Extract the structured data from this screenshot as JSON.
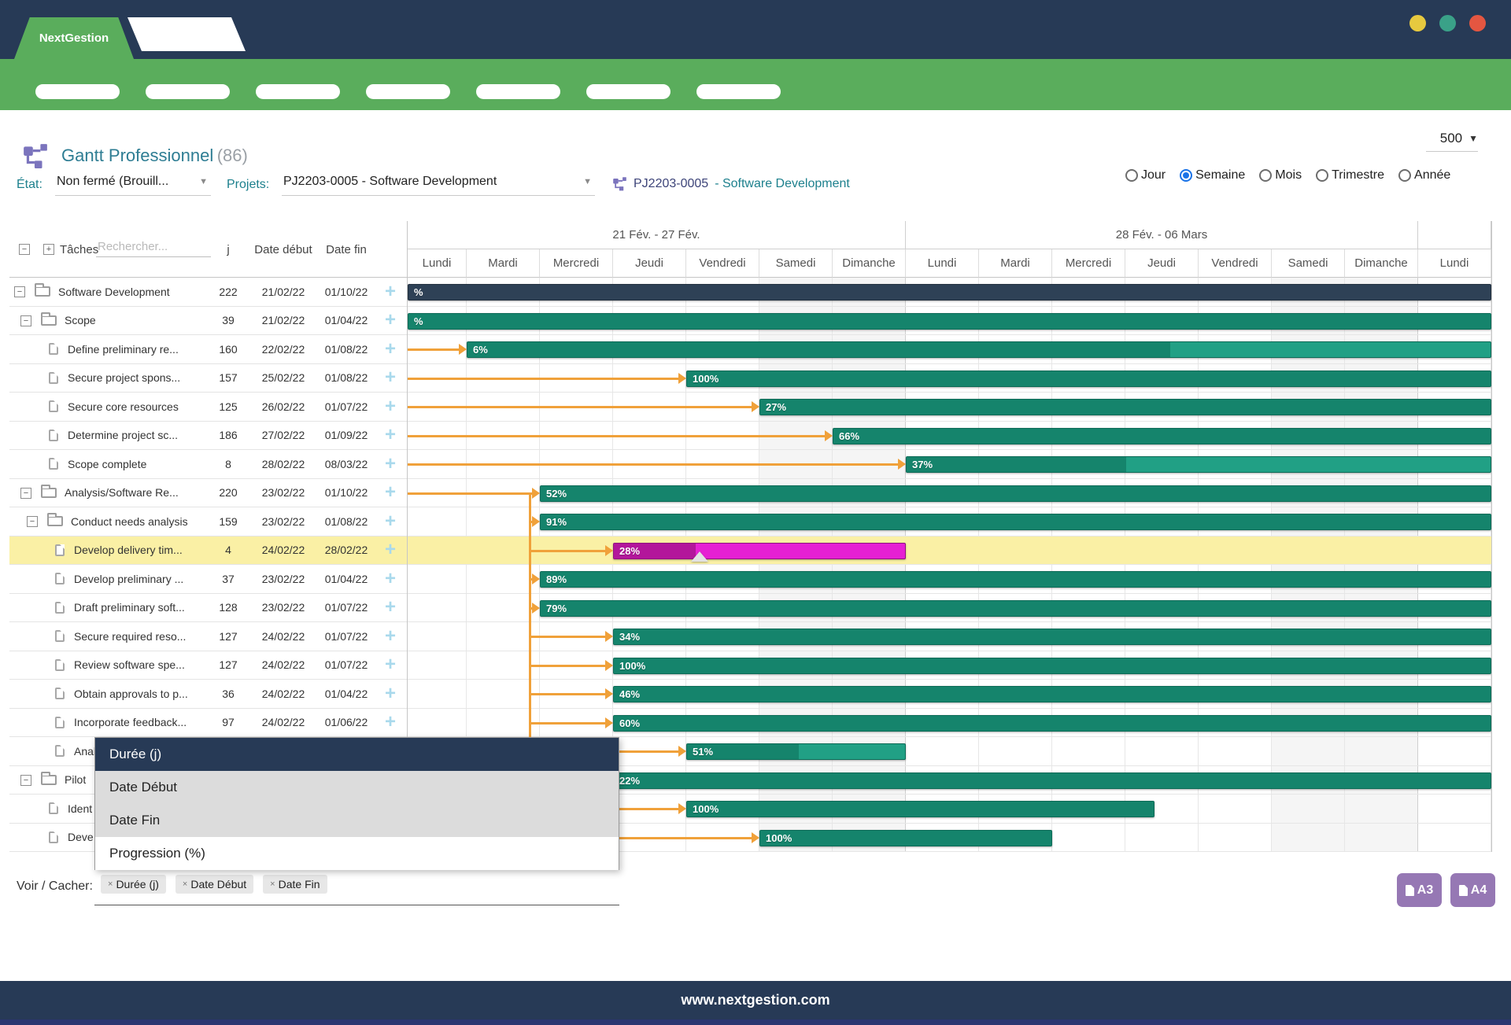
{
  "theme": {
    "navy": "#273a56",
    "green": "#5aad5c",
    "orange": "#f0a13a",
    "yellow_row": "#faf0a5",
    "teal_fill": "#15846c",
    "teal_rest": "#21a085",
    "teal_border": "#0d6b57",
    "navy_bar": "#2e4156",
    "navy_bar_border": "#22303f",
    "magenta_fill": "#b3169b",
    "magenta_rest": "#e620d3",
    "magenta_border": "#8f1280",
    "purple_button": "#9678b4",
    "radio_blue": "#1a73e8",
    "light_blue_plus": "#a9d9ec",
    "footer_strip": "#2b3570",
    "windot_colors": [
      "#e7c93f",
      "#3aa188",
      "#e45641"
    ]
  },
  "window": {
    "brand": "NextGestion"
  },
  "nav": {
    "pill_count": 7
  },
  "header": {
    "title": "Gantt Professionnel",
    "count": "(86)",
    "page_size": "500"
  },
  "filters": {
    "etat_label": "État:",
    "etat_value": "Non fermé (Brouill...",
    "projets_label": "Projets:",
    "projets_value": "PJ2203-0005 - Software Development",
    "project_code": "PJ2203-0005",
    "project_name": "- Software Development",
    "view_modes": [
      {
        "label": "Jour",
        "selected": false
      },
      {
        "label": "Semaine",
        "selected": true
      },
      {
        "label": "Mois",
        "selected": false
      },
      {
        "label": "Trimestre",
        "selected": false
      },
      {
        "label": "Année",
        "selected": false
      }
    ]
  },
  "table_header": {
    "tasks_label": "Tâches",
    "search_placeholder": "Rechercher...",
    "col_days": "j",
    "col_start": "Date début",
    "col_end": "Date fin"
  },
  "gantt": {
    "weeks": [
      {
        "label": "21 Fév. - 27 Fév.",
        "n_days": 7
      },
      {
        "label": "28 Fév. - 06 Mars",
        "n_days": 7
      },
      {
        "label": "",
        "n_days": 1
      }
    ],
    "day_names": [
      "Lundi",
      "Mardi",
      "Mercredi",
      "Jeudi",
      "Vendredi",
      "Samedi",
      "Dimanche",
      "Lundi",
      "Mardi",
      "Mercredi",
      "Jeudi",
      "Vendredi",
      "Samedi",
      "Dimanche",
      "Lundi"
    ],
    "weekend_day_indexes": [
      5,
      6,
      12,
      13
    ]
  },
  "rows": [
    {
      "name": "Software Development",
      "level": 0,
      "kind": "folder",
      "j": "222",
      "start": "21/02/22",
      "end": "01/10/22",
      "highlight": false,
      "bar": {
        "color": "navy",
        "label": "%",
        "sd": 0,
        "ed": null,
        "fpx": null,
        "handle": false
      },
      "arrow": null
    },
    {
      "name": "Scope",
      "level": 1,
      "kind": "folder",
      "j": "39",
      "start": "21/02/22",
      "end": "01/04/22",
      "highlight": false,
      "bar": {
        "color": "teal",
        "label": "%",
        "sd": 0,
        "ed": null,
        "fpx": null,
        "handle": false
      },
      "arrow": null
    },
    {
      "name": "Define preliminary re...",
      "level": 2,
      "kind": "file",
      "j": "160",
      "start": "22/02/22",
      "end": "01/08/22",
      "highlight": false,
      "bar": {
        "color": "teal",
        "label": "6%",
        "sd": 1,
        "ed": null,
        "fpx": 968,
        "handle": false
      },
      "arrow": "edge"
    },
    {
      "name": "Secure project spons...",
      "level": 2,
      "kind": "file",
      "j": "157",
      "start": "25/02/22",
      "end": "01/08/22",
      "highlight": false,
      "bar": {
        "color": "teal",
        "label": "100%",
        "sd": 4,
        "ed": null,
        "fpx": null,
        "handle": false
      },
      "arrow": "edge"
    },
    {
      "name": "Secure core resources",
      "level": 2,
      "kind": "file",
      "j": "125",
      "start": "26/02/22",
      "end": "01/07/22",
      "highlight": false,
      "bar": {
        "color": "teal",
        "label": "27%",
        "sd": 5,
        "ed": null,
        "fpx": null,
        "handle": false
      },
      "arrow": "edge"
    },
    {
      "name": "Determine project sc...",
      "level": 2,
      "kind": "file",
      "j": "186",
      "start": "27/02/22",
      "end": "01/09/22",
      "highlight": false,
      "bar": {
        "color": "teal",
        "label": "66%",
        "sd": 6,
        "ed": null,
        "fpx": null,
        "handle": false
      },
      "arrow": "edge"
    },
    {
      "name": "Scope complete",
      "level": 2,
      "kind": "file",
      "j": "8",
      "start": "28/02/22",
      "end": "08/03/22",
      "highlight": false,
      "bar": {
        "color": "teal",
        "label": "37%",
        "sd": 7,
        "ed": null,
        "fpx": 912,
        "handle": false
      },
      "arrow": "edge"
    },
    {
      "name": "Analysis/Software Re...",
      "level": 1,
      "kind": "folder",
      "j": "220",
      "start": "23/02/22",
      "end": "01/10/22",
      "highlight": false,
      "bar": {
        "color": "teal",
        "label": "52%",
        "sd": 2,
        "ed": null,
        "fpx": null,
        "handle": false
      },
      "arrow": "edge"
    },
    {
      "name": "Conduct needs analysis",
      "level": 2,
      "kind": "folder",
      "j": "159",
      "start": "23/02/22",
      "end": "01/08/22",
      "highlight": false,
      "bar": {
        "color": "teal",
        "label": "91%",
        "sd": 2,
        "ed": null,
        "fpx": null,
        "handle": false
      },
      "arrow": "vline"
    },
    {
      "name": "Develop delivery tim...",
      "level": 3,
      "kind": "file",
      "j": "4",
      "start": "24/02/22",
      "end": "28/02/22",
      "highlight": true,
      "bar": {
        "color": "magenta",
        "label": "28%",
        "sd": 3,
        "ed": 7,
        "fpx": 365,
        "handle": true
      },
      "arrow": "vline"
    },
    {
      "name": "Develop preliminary ...",
      "level": 3,
      "kind": "file",
      "j": "37",
      "start": "23/02/22",
      "end": "01/04/22",
      "highlight": false,
      "bar": {
        "color": "teal",
        "label": "89%",
        "sd": 2,
        "ed": null,
        "fpx": null,
        "handle": false
      },
      "arrow": "vline"
    },
    {
      "name": "Draft preliminary soft...",
      "level": 3,
      "kind": "file",
      "j": "128",
      "start": "23/02/22",
      "end": "01/07/22",
      "highlight": false,
      "bar": {
        "color": "teal",
        "label": "79%",
        "sd": 2,
        "ed": null,
        "fpx": null,
        "handle": false
      },
      "arrow": "vline"
    },
    {
      "name": "Secure required reso...",
      "level": 3,
      "kind": "file",
      "j": "127",
      "start": "24/02/22",
      "end": "01/07/22",
      "highlight": false,
      "bar": {
        "color": "teal",
        "label": "34%",
        "sd": 3,
        "ed": null,
        "fpx": null,
        "handle": false
      },
      "arrow": "vline"
    },
    {
      "name": "Review software spe...",
      "level": 3,
      "kind": "file",
      "j": "127",
      "start": "24/02/22",
      "end": "01/07/22",
      "highlight": false,
      "bar": {
        "color": "teal",
        "label": "100%",
        "sd": 3,
        "ed": null,
        "fpx": null,
        "handle": false
      },
      "arrow": "vline"
    },
    {
      "name": "Obtain approvals to p...",
      "level": 3,
      "kind": "file",
      "j": "36",
      "start": "24/02/22",
      "end": "01/04/22",
      "highlight": false,
      "bar": {
        "color": "teal",
        "label": "46%",
        "sd": 3,
        "ed": null,
        "fpx": null,
        "handle": false
      },
      "arrow": "vline"
    },
    {
      "name": "Incorporate feedback...",
      "level": 3,
      "kind": "file",
      "j": "97",
      "start": "24/02/22",
      "end": "01/06/22",
      "highlight": false,
      "bar": {
        "color": "teal",
        "label": "60%",
        "sd": 3,
        "ed": null,
        "fpx": null,
        "handle": false
      },
      "arrow": "vline"
    },
    {
      "name": "Anal",
      "level": 3,
      "kind": "file",
      "j": "",
      "start": "",
      "end": "",
      "highlight": false,
      "bar": {
        "color": "teal",
        "label": "51%",
        "sd": 4,
        "ed": 7,
        "fpx": 496,
        "handle": false
      },
      "arrow": "vline"
    },
    {
      "name": "Pilot",
      "level": 1,
      "kind": "folder",
      "j": "",
      "start": "",
      "end": "",
      "highlight": false,
      "bar": {
        "color": "teal",
        "label": "22%",
        "sd": 3,
        "ed": null,
        "fpx": null,
        "handle": false
      },
      "arrow": null
    },
    {
      "name": "Ident",
      "level": 2,
      "kind": "file",
      "j": "",
      "start": "",
      "end": "",
      "highlight": false,
      "bar": {
        "color": "teal",
        "label": "100%",
        "sd": 4,
        "ed": 10.4,
        "fpx": null,
        "handle": false
      },
      "arrow": "vline"
    },
    {
      "name": "Deve",
      "level": 2,
      "kind": "file",
      "j": "",
      "start": "",
      "end": "",
      "highlight": false,
      "bar": {
        "color": "teal",
        "label": "100%",
        "sd": 5,
        "ed": 9,
        "fpx": null,
        "handle": false
      },
      "arrow": "vline"
    }
  ],
  "dropdown": {
    "items": [
      {
        "label": "Durée (j)",
        "state": "hlt"
      },
      {
        "label": "Date Début",
        "state": "gray"
      },
      {
        "label": "Date Fin",
        "state": "gray"
      },
      {
        "label": "Progression (%)",
        "state": "plain"
      }
    ]
  },
  "bottom_toolbar": {
    "label": "Voir / Cacher:",
    "chips": [
      "Durée (j)",
      "Date Début",
      "Date Fin"
    ],
    "export_a3": "A3",
    "export_a4": "A4"
  },
  "footer": {
    "url": "www.nextgestion.com"
  }
}
